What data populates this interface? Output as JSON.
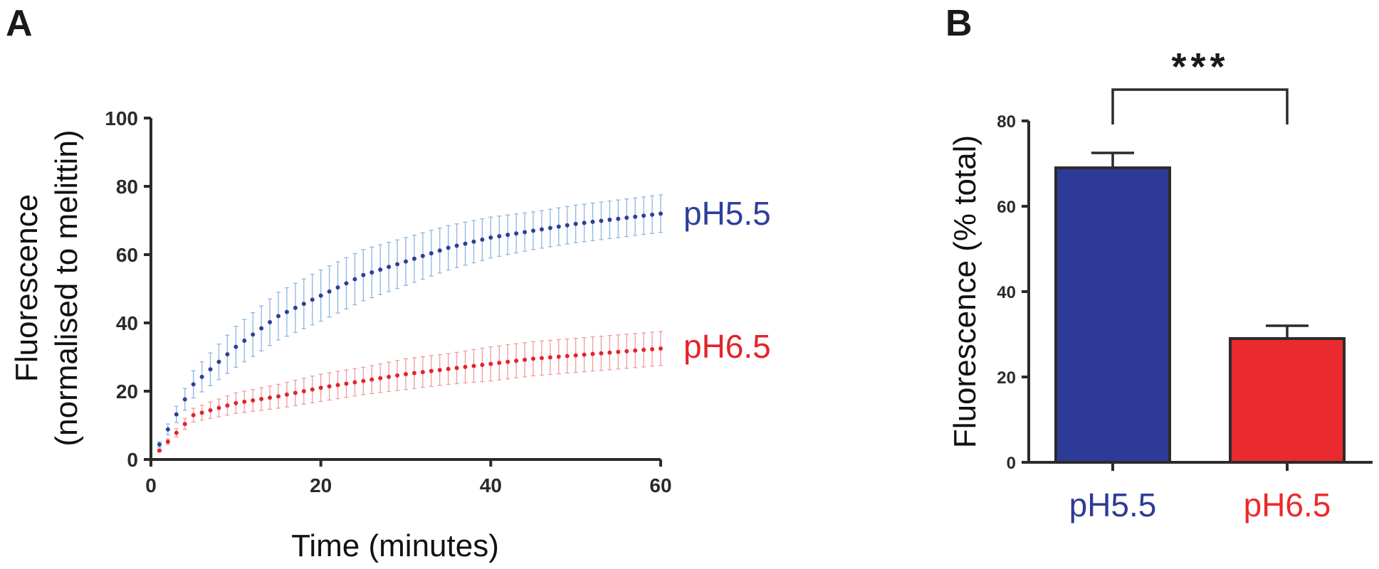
{
  "panel_a_label": "A",
  "panel_b_label": "B",
  "chart_data": [
    {
      "type": "scatter",
      "panel": "A",
      "xlabel": "Time (minutes)",
      "ylabel": "Fluorescence",
      "ylabel_line2": "(normalised to melittin)",
      "xlim": [
        0,
        60
      ],
      "ylim": [
        0,
        100
      ],
      "xticks": [
        "0",
        "20",
        "40",
        "60"
      ],
      "yticks": [
        "0",
        "20",
        "40",
        "60",
        "80",
        "100"
      ],
      "series_model": "points every 1 minute from 0 to 60, with error bars",
      "series": [
        {
          "name": "pH5.5",
          "color": "#2e3f9a",
          "errorbar_color": "#8fb4e3",
          "x": [
            0,
            5,
            10,
            15,
            20,
            25,
            30,
            35,
            40,
            45,
            50,
            55,
            60
          ],
          "values": [
            0,
            22,
            33,
            42,
            48,
            54,
            58,
            62,
            65,
            67,
            69,
            70.5,
            72
          ],
          "error": [
            0,
            4,
            6,
            7,
            7.5,
            7.5,
            7,
            6.5,
            6,
            5.5,
            5.5,
            5.5,
            5.5
          ]
        },
        {
          "name": "pH6.5",
          "color": "#e3242b",
          "errorbar_color": "#f09a9e",
          "x": [
            0,
            5,
            10,
            15,
            20,
            25,
            30,
            35,
            40,
            45,
            50,
            55,
            60
          ],
          "values": [
            0,
            13,
            16.5,
            18.5,
            21,
            23,
            25,
            26.5,
            28,
            29.5,
            30.5,
            31.5,
            32.5
          ],
          "error": [
            0,
            2,
            3,
            3.5,
            4,
            4,
            4.5,
            4.5,
            5,
            5,
            5,
            5,
            5
          ]
        }
      ]
    },
    {
      "type": "bar",
      "panel": "B",
      "ylabel": "Fluorescence (% total)",
      "ylim": [
        0,
        80
      ],
      "yticks": [
        "0",
        "20",
        "40",
        "60",
        "80"
      ],
      "categories": [
        "pH5.5",
        "pH6.5"
      ],
      "values": [
        69,
        29
      ],
      "error": [
        3.5,
        3
      ],
      "colors": [
        "#2e3b96",
        "#ea2a2e"
      ],
      "significance": "***"
    }
  ]
}
